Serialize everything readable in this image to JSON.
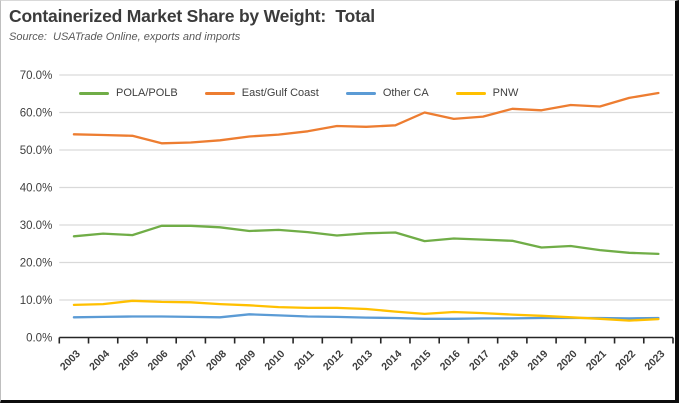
{
  "header": {
    "title": "Containerized Market Share by Weight:  Total",
    "source": "Source:  USATrade Online, exports and imports"
  },
  "chart_data": {
    "type": "line",
    "x": [
      2003,
      2004,
      2005,
      2006,
      2007,
      2008,
      2009,
      2010,
      2011,
      2012,
      2013,
      2014,
      2015,
      2016,
      2017,
      2018,
      2019,
      2020,
      2021,
      2022,
      2023
    ],
    "series": [
      {
        "name": "POLA/POLB",
        "color": "#70AD47",
        "values": [
          27.0,
          27.7,
          27.3,
          29.8,
          29.8,
          29.4,
          28.4,
          28.7,
          28.1,
          27.2,
          27.8,
          28.0,
          25.7,
          26.4,
          26.1,
          25.8,
          24.0,
          24.4,
          23.3,
          22.6,
          22.3
        ]
      },
      {
        "name": "East/Gulf Coast",
        "color": "#ED7D31",
        "values": [
          54.2,
          54.0,
          53.8,
          51.8,
          52.0,
          52.6,
          53.6,
          54.1,
          55.0,
          56.4,
          56.2,
          56.6,
          60.0,
          58.3,
          58.9,
          61.0,
          60.6,
          62.0,
          61.6,
          63.9,
          65.2
        ]
      },
      {
        "name": "Other CA",
        "color": "#5B9BD5",
        "values": [
          5.4,
          5.5,
          5.6,
          5.6,
          5.5,
          5.4,
          6.2,
          5.9,
          5.6,
          5.5,
          5.3,
          5.2,
          5.0,
          5.0,
          5.1,
          5.1,
          5.2,
          5.2,
          5.2,
          5.1,
          5.2
        ]
      },
      {
        "name": "PNW",
        "color": "#FFC000",
        "values": [
          8.7,
          8.9,
          9.8,
          9.5,
          9.4,
          8.9,
          8.6,
          8.1,
          7.9,
          7.9,
          7.6,
          6.9,
          6.3,
          6.8,
          6.5,
          6.1,
          5.8,
          5.4,
          5.0,
          4.5,
          4.9
        ]
      }
    ],
    "ylim": [
      0,
      70
    ],
    "yticks": [
      "0.0%",
      "10.0%",
      "20.0%",
      "30.0%",
      "40.0%",
      "50.0%",
      "60.0%",
      "70.0%"
    ],
    "grid": true,
    "legend_position": "top",
    "colors": {
      "gridline": "#D9D9D9",
      "axis": "#262626",
      "tick_label": "#404040"
    }
  }
}
